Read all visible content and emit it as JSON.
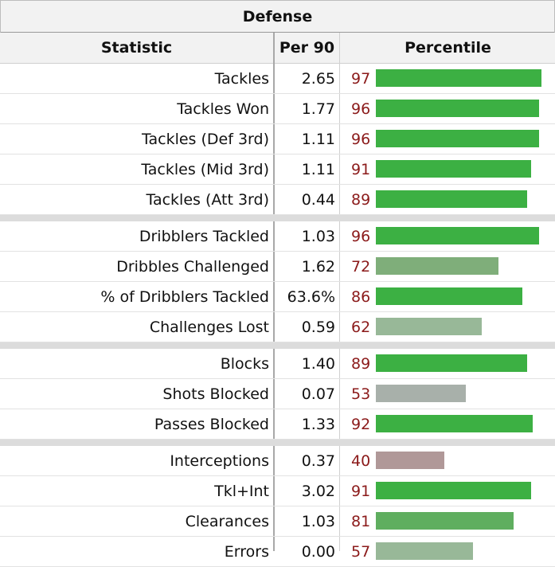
{
  "table_title": "Defense",
  "columns": {
    "statistic": "Statistic",
    "per90": "Per 90",
    "percentile": "Percentile"
  },
  "colors": {
    "high": "#3cb043",
    "mid_high": "#5fae5f",
    "mid": "#7fae7a",
    "low_mid": "#98b898",
    "neutral": "#a8b0aa",
    "low": "#b09898",
    "percentile_text": "#8b1a1a"
  },
  "rows": [
    {
      "stat": "Tackles",
      "per90": "2.65",
      "pct": "97",
      "pct_value": 97,
      "group": 1
    },
    {
      "stat": "Tackles Won",
      "per90": "1.77",
      "pct": "96",
      "pct_value": 96,
      "group": 1
    },
    {
      "stat": "Tackles (Def 3rd)",
      "per90": "1.11",
      "pct": "96",
      "pct_value": 96,
      "group": 1
    },
    {
      "stat": "Tackles (Mid 3rd)",
      "per90": "1.11",
      "pct": "91",
      "pct_value": 91,
      "group": 1
    },
    {
      "stat": "Tackles (Att 3rd)",
      "per90": "0.44",
      "pct": "89",
      "pct_value": 89,
      "group": 1
    },
    {
      "stat": "Dribblers Tackled",
      "per90": "1.03",
      "pct": "96",
      "pct_value": 96,
      "group": 2
    },
    {
      "stat": "Dribbles Challenged",
      "per90": "1.62",
      "pct": "72",
      "pct_value": 72,
      "group": 2
    },
    {
      "stat": "% of Dribblers Tackled",
      "per90": "63.6%",
      "pct": "86",
      "pct_value": 86,
      "group": 2
    },
    {
      "stat": "Challenges Lost",
      "per90": "0.59",
      "pct": "62",
      "pct_value": 62,
      "group": 2
    },
    {
      "stat": "Blocks",
      "per90": "1.40",
      "pct": "89",
      "pct_value": 89,
      "group": 3
    },
    {
      "stat": "Shots Blocked",
      "per90": "0.07",
      "pct": "53",
      "pct_value": 53,
      "group": 3
    },
    {
      "stat": "Passes Blocked",
      "per90": "1.33",
      "pct": "92",
      "pct_value": 92,
      "group": 3
    },
    {
      "stat": "Interceptions",
      "per90": "0.37",
      "pct": "40",
      "pct_value": 40,
      "group": 4
    },
    {
      "stat": "Tkl+Int",
      "per90": "3.02",
      "pct": "91",
      "pct_value": 91,
      "group": 4
    },
    {
      "stat": "Clearances",
      "per90": "1.03",
      "pct": "81",
      "pct_value": 81,
      "group": 4
    },
    {
      "stat": "Errors",
      "per90": "0.00",
      "pct": "57",
      "pct_value": 57,
      "group": 4
    }
  ]
}
